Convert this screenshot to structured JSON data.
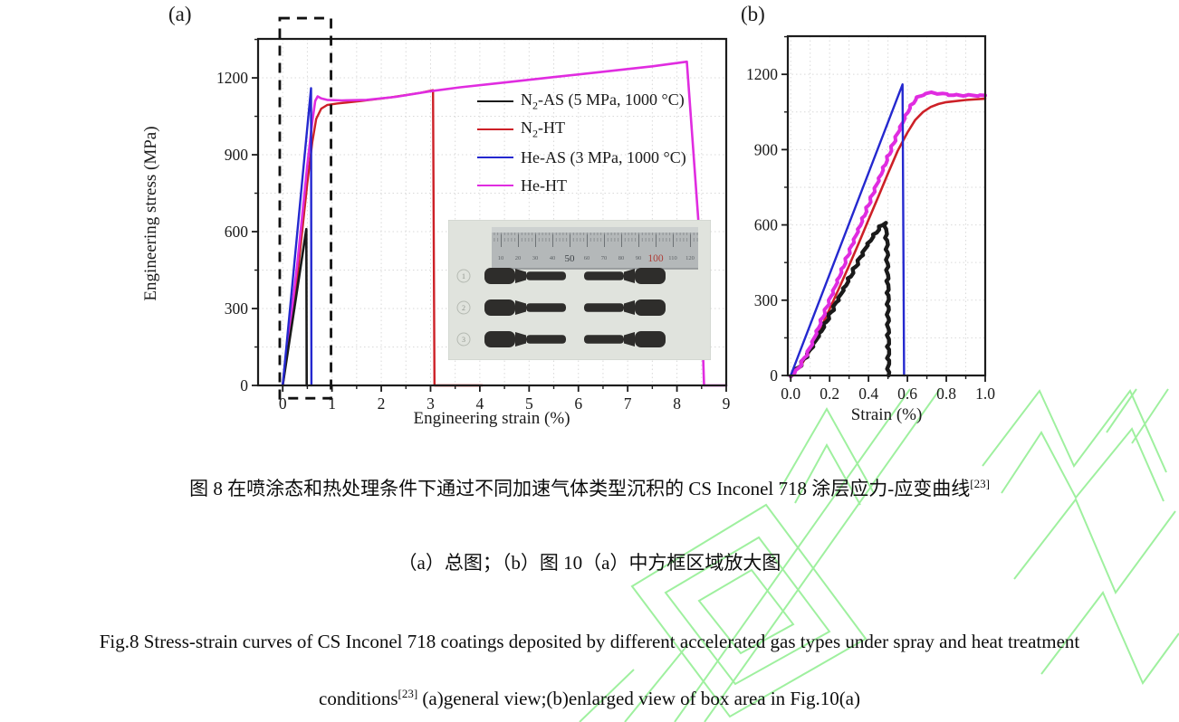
{
  "figure": {
    "panel_a_label": "(a)",
    "panel_b_label": "(b)"
  },
  "captions": {
    "zh1": "图 8 在喷涂态和热处理条件下通过不同加速气体类型沉积的 CS Inconel 718 涂层应力-应变曲线",
    "zh1_sup": "[23]",
    "zh2": "（a）总图；（b）图 10（a）中方框区域放大图",
    "en1": "Fig.8 Stress-strain curves of CS Inconel 718 coatings deposited by different accelerated gas types under spray and heat treatment",
    "en2_pre": "conditions",
    "en2_sup": "[23]",
    "en2_post": " (a)general view;(b)enlarged view of box area in Fig.10(a)"
  },
  "legend": {
    "items": [
      {
        "pre": "N",
        "sub": "2",
        "post": "-AS (5 MPa, 1000 °C)",
        "color": "#1a1a1a"
      },
      {
        "pre": "N",
        "sub": "2",
        "post": "-HT",
        "color": "#cd2027"
      },
      {
        "pre": "He-AS (3 MPa, 1000 °C)",
        "sub": "",
        "post": "",
        "color": "#2428cf"
      },
      {
        "pre": "He-HT",
        "sub": "",
        "post": "",
        "color": "#e02ce0"
      }
    ]
  },
  "inset": {
    "ruler_numbers": [
      "10",
      "20",
      "30",
      "40",
      "50",
      "60",
      "70",
      "80",
      "90",
      "100",
      "110",
      "120"
    ],
    "specimen_ids": [
      "1",
      "2",
      "3"
    ]
  },
  "watermark": {
    "color": "#8fee8f"
  },
  "chart_data": [
    {
      "id": "chartA",
      "type": "line",
      "title": "",
      "xlabel": "Engineering strain (%)",
      "ylabel": "Engineering stress (MPa)",
      "xlim": [
        -0.5,
        9.0
      ],
      "ylim": [
        0,
        1352
      ],
      "grid": true,
      "grid_color": "#d9d9d9",
      "axis_color": "#1c1c1c",
      "x_major": [
        0,
        1,
        2,
        3,
        4,
        5,
        6,
        7,
        8,
        9
      ],
      "x_major_labels": [
        "0",
        "1",
        "2",
        "3",
        "4",
        "5",
        "6",
        "7",
        "8",
        "9"
      ],
      "x_minor": [
        0.5,
        1.5,
        2.5,
        3.5,
        4.5,
        5.5,
        6.5,
        7.5,
        8.5
      ],
      "y_major": [
        0,
        300,
        600,
        900,
        1200
      ],
      "y_major_labels": [
        "0",
        "300",
        "600",
        "900",
        "1200"
      ],
      "y_minor": [
        150,
        450,
        750,
        1050,
        1350
      ],
      "annotations": [
        {
          "type": "dashed-box",
          "x0": -0.06,
          "x1": 0.98,
          "y0": -50,
          "y1": 1433
        }
      ],
      "series": [
        {
          "name": "N2-HT",
          "color": "#cd2027",
          "width": 2.4,
          "points": [
            [
              0,
              0
            ],
            [
              0.1,
              140
            ],
            [
              0.3,
              430
            ],
            [
              0.5,
              790
            ],
            [
              0.6,
              950
            ],
            [
              0.68,
              1040
            ],
            [
              0.78,
              1080
            ],
            [
              0.9,
              1094
            ],
            [
              1.1,
              1100
            ],
            [
              1.6,
              1110
            ],
            [
              2.2,
              1124
            ],
            [
              2.8,
              1142
            ],
            [
              3.05,
              1152
            ],
            [
              3.08,
              0
            ],
            [
              4.05,
              0
            ]
          ]
        },
        {
          "name": "He-HT",
          "color": "#e02ce0",
          "width": 2.6,
          "points": [
            [
              0,
              0
            ],
            [
              0.1,
              155
            ],
            [
              0.3,
              480
            ],
            [
              0.5,
              860
            ],
            [
              0.6,
              1030
            ],
            [
              0.66,
              1110
            ],
            [
              0.71,
              1128
            ],
            [
              0.78,
              1120
            ],
            [
              0.9,
              1114
            ],
            [
              1.2,
              1112
            ],
            [
              1.7,
              1114
            ],
            [
              2.3,
              1126
            ],
            [
              3.0,
              1148
            ],
            [
              3.6,
              1163
            ],
            [
              4.5,
              1182
            ],
            [
              5.5,
              1203
            ],
            [
              6.5,
              1224
            ],
            [
              7.5,
              1245
            ],
            [
              8.2,
              1263
            ],
            [
              8.45,
              600
            ],
            [
              8.55,
              0
            ],
            [
              9.0,
              0
            ]
          ]
        },
        {
          "name": "N2-AS (5 MPa, 1000 °C)",
          "color": "#1a1a1a",
          "width": 2.6,
          "points": [
            [
              0,
              0
            ],
            [
              0.48,
              610
            ],
            [
              0.487,
              0
            ]
          ]
        },
        {
          "name": "He-AS (3 MPa, 1000 °C)",
          "color": "#2428cf",
          "width": 2.4,
          "points": [
            [
              0,
              0
            ],
            [
              0.575,
              1160
            ],
            [
              0.583,
              0
            ]
          ]
        }
      ]
    },
    {
      "id": "chartB",
      "type": "line",
      "title": "",
      "xlabel": "Strain (%)",
      "ylabel": "",
      "xlim": [
        -0.015,
        1.0
      ],
      "ylim": [
        0,
        1352
      ],
      "grid": true,
      "grid_color": "#d9d9d9",
      "axis_color": "#1c1c1c",
      "x_major": [
        0,
        0.2,
        0.4,
        0.6,
        0.8,
        1.0
      ],
      "x_major_labels": [
        "0.0",
        "0.2",
        "0.4",
        "0.6",
        "0.8",
        "1.0"
      ],
      "x_minor": [
        0.1,
        0.3,
        0.5,
        0.7,
        0.9
      ],
      "y_major": [
        0,
        300,
        600,
        900,
        1200
      ],
      "y_major_labels": [
        "0",
        "300",
        "600",
        "900",
        "1200"
      ],
      "y_minor": [
        150,
        450,
        750,
        1050,
        1350
      ],
      "annotations": [],
      "series": [
        {
          "name": "N2-HT",
          "color": "#cd2027",
          "width": 2.6,
          "points": [
            [
              0,
              0
            ],
            [
              0.05,
              38
            ],
            [
              0.1,
              98
            ],
            [
              0.15,
              180
            ],
            [
              0.2,
              265
            ],
            [
              0.25,
              350
            ],
            [
              0.3,
              438
            ],
            [
              0.35,
              528
            ],
            [
              0.4,
              620
            ],
            [
              0.45,
              712
            ],
            [
              0.5,
              805
            ],
            [
              0.55,
              895
            ],
            [
              0.6,
              968
            ],
            [
              0.64,
              1018
            ],
            [
              0.68,
              1050
            ],
            [
              0.72,
              1070
            ],
            [
              0.76,
              1082
            ],
            [
              0.8,
              1089
            ],
            [
              0.9,
              1098
            ],
            [
              1.0,
              1103
            ]
          ]
        },
        {
          "name": "N2-AS (5 MPa, 1000 °C)",
          "color": "#1a1a1a",
          "width": 4.4,
          "jitter": 1.5,
          "points": [
            [
              0,
              0
            ],
            [
              0.05,
              42
            ],
            [
              0.1,
              100
            ],
            [
              0.15,
              168
            ],
            [
              0.2,
              240
            ],
            [
              0.25,
              312
            ],
            [
              0.3,
              385
            ],
            [
              0.35,
              458
            ],
            [
              0.4,
              528
            ],
            [
              0.44,
              572
            ],
            [
              0.47,
              600
            ],
            [
              0.485,
              611
            ],
            [
              0.495,
              520
            ],
            [
              0.5,
              330
            ],
            [
              0.503,
              0
            ]
          ]
        },
        {
          "name": "He-HT",
          "color": "#e02ce0",
          "width": 4.0,
          "jitter": 1.3,
          "points": [
            [
              0,
              0
            ],
            [
              0.03,
              18
            ],
            [
              0.06,
              55
            ],
            [
              0.1,
              110
            ],
            [
              0.15,
              205
            ],
            [
              0.2,
              300
            ],
            [
              0.25,
              395
            ],
            [
              0.3,
              490
            ],
            [
              0.35,
              585
            ],
            [
              0.4,
              680
            ],
            [
              0.45,
              775
            ],
            [
              0.5,
              870
            ],
            [
              0.55,
              965
            ],
            [
              0.6,
              1050
            ],
            [
              0.64,
              1100
            ],
            [
              0.68,
              1120
            ],
            [
              0.72,
              1126
            ],
            [
              0.76,
              1124
            ],
            [
              0.8,
              1120
            ],
            [
              0.85,
              1117
            ],
            [
              0.9,
              1116
            ],
            [
              1.0,
              1116
            ]
          ]
        },
        {
          "name": "He-AS (3 MPa, 1000 °C)",
          "color": "#2428cf",
          "width": 2.4,
          "points": [
            [
              0,
              0
            ],
            [
              0.575,
              1160
            ],
            [
              0.583,
              0
            ]
          ]
        }
      ]
    }
  ]
}
